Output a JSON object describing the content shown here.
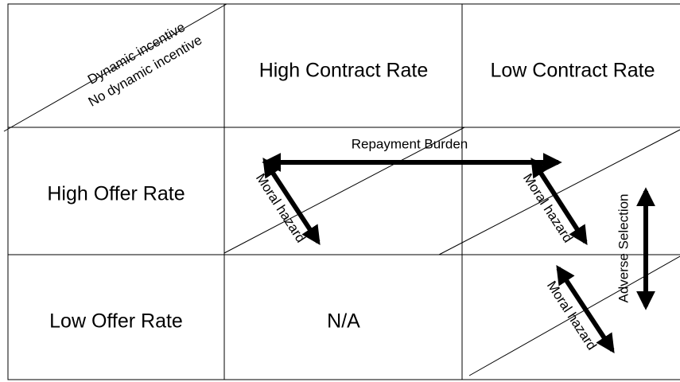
{
  "corner": {
    "top": "Dynamic incentive",
    "bottom": "No dynamic incentive"
  },
  "columns": [
    "High Contract Rate",
    "Low Contract Rate"
  ],
  "rows": [
    {
      "label": "High Offer Rate",
      "cells": [
        "",
        ""
      ]
    },
    {
      "label": "Low Offer Rate",
      "cells": [
        "N/A",
        ""
      ]
    }
  ],
  "arrows": {
    "repayment": "Repayment Burden",
    "moral_hazard": "Moral hazard",
    "adverse": "Adverse Selection"
  }
}
